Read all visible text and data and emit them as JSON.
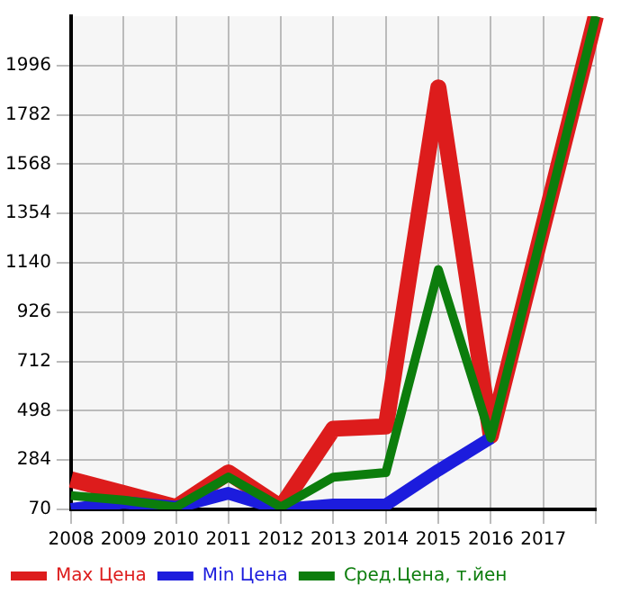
{
  "chart_data": {
    "type": "line",
    "categories": [
      "2008",
      "2009",
      "2010",
      "2011",
      "2012",
      "2013",
      "2014",
      "2015",
      "2016",
      "2017",
      null
    ],
    "series": [
      {
        "name": "Max Цена",
        "color": "#dd1c1c",
        "values": [
          200,
          140,
          80,
          230,
          80,
          420,
          430,
          1900,
          390,
          null,
          2210
        ]
      },
      {
        "name": "Min Цена",
        "color": "#1c1cdd",
        "values": [
          70,
          100,
          80,
          140,
          70,
          90,
          90,
          240,
          380,
          null,
          null
        ]
      },
      {
        "name": "Сред.Цена, т.йен",
        "color": "#0c7d0c",
        "values": [
          130,
          110,
          80,
          210,
          80,
          210,
          230,
          1110,
          380,
          null,
          2210
        ]
      }
    ],
    "ylim": [
      70,
      2210
    ],
    "yticks": [
      70,
      284,
      498,
      712,
      926,
      1140,
      1354,
      1568,
      1782,
      1996
    ],
    "grid": true,
    "legend": "bottom",
    "marker": "none",
    "line_style": "solid"
  }
}
